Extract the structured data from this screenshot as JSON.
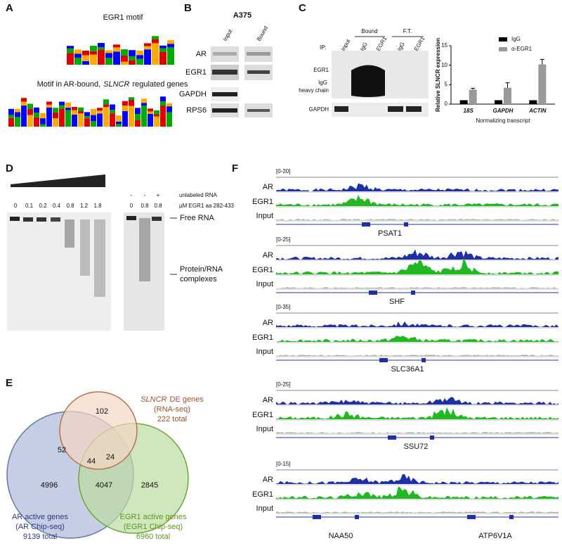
{
  "panel_a": {
    "label": "A",
    "motif_1_title": "EGR1 motif",
    "motif_2_title": [
      "Motif in AR-bound,",
      "SLNCR",
      "regulated genes"
    ]
  },
  "panel_b": {
    "label": "B",
    "cell_line": "A375",
    "columns": [
      "Input",
      "Bound"
    ],
    "rows": [
      "AR",
      "EGR1",
      "GAPDH",
      "RPS6"
    ]
  },
  "panel_c": {
    "label": "C",
    "ip_label": "IP:",
    "groups": [
      "Bound",
      "F.T."
    ],
    "columns": [
      "Input",
      "IgG",
      "EGR1",
      "IgG",
      "EGR1"
    ],
    "rows": [
      "EGR1",
      "IgG",
      "heavy chain",
      "GAPDH"
    ]
  },
  "chart_data": {
    "type": "bar",
    "y_label": "Relative SLNCR expression",
    "x_label": "Normalizing transcript",
    "categories": [
      "18S",
      "GAPDH",
      "ACTIN"
    ],
    "series": [
      {
        "name": "IgG",
        "color": "#000000",
        "values": [
          1,
          1,
          1
        ]
      },
      {
        "name": "α-EGR1",
        "color": "#999999",
        "values": [
          3.7,
          4.2,
          10.2
        ],
        "errors": [
          0.4,
          1.3,
          1.3
        ]
      }
    ],
    "ylim": [
      0,
      15
    ],
    "yticks": [
      0,
      5,
      10,
      15
    ]
  },
  "panel_d": {
    "label": "D",
    "lanes_1": [
      0,
      0.1,
      0.2,
      0.4,
      0.8,
      1.2,
      1.8
    ],
    "lanes_2_competitor": [
      "-",
      "-",
      "+"
    ],
    "lanes_2_concentration": [
      0,
      0.8,
      0.8
    ],
    "competitor_label": "unlabeled RNA",
    "concentration_label": "µM EGR1 aa 282-433",
    "band_labels": [
      "Free RNA",
      "Protein/RNA",
      "complexes"
    ]
  },
  "panel_e": {
    "label": "E",
    "regions": {
      "slncr_only": 102,
      "ar_slncr": 52,
      "all_three": 44,
      "slncr_egr1": 24,
      "ar_only": 4996,
      "ar_egr1": 4047,
      "egr1_only": 2845
    },
    "sets": [
      {
        "name_em": "SLNCR",
        "name": "DE genes",
        "method": "(RNA-seq)",
        "total": "222 total"
      },
      {
        "name": "AR active genes",
        "method": "(AR Chip-seq)",
        "total": "9139 total"
      },
      {
        "name": "EGR1 active genes",
        "method": "(EGR1 Chip-seq)",
        "total": "6960 total"
      }
    ]
  },
  "panel_f": {
    "label": "F",
    "track_labels": [
      "AR",
      "EGR1",
      "Input"
    ],
    "loci": [
      {
        "range": "[0-20]",
        "genes": [
          "PSAT1"
        ]
      },
      {
        "range": "[0-25]",
        "genes": [
          "SHF"
        ]
      },
      {
        "range": "[0-35]",
        "genes": [
          "SLC36A1"
        ]
      },
      {
        "range": "[0-25]",
        "genes": [
          "SSU72"
        ]
      },
      {
        "range": "[0-15]",
        "genes": [
          "NAA50",
          "ATP6V1A"
        ]
      }
    ]
  }
}
